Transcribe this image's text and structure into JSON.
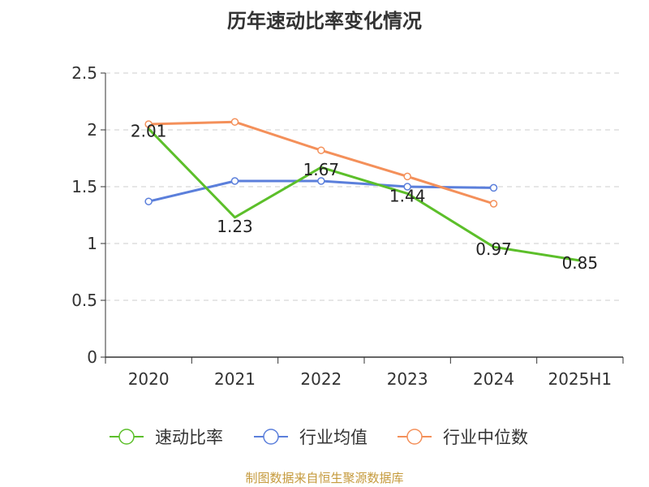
{
  "chart_data": {
    "type": "line",
    "title": "历年速动比率变化情况",
    "categories": [
      "2020",
      "2021",
      "2022",
      "2023",
      "2024",
      "2025H1"
    ],
    "ylim": [
      0,
      2.5
    ],
    "yticks": [
      "0",
      "0.5",
      "1",
      "1.5",
      "2",
      "2.5"
    ],
    "grid": true,
    "legend_position": "bottom",
    "series": [
      {
        "name": "速动比率",
        "color": "#5cbf2a",
        "values": [
          2.01,
          1.23,
          1.67,
          1.44,
          0.97,
          0.85
        ],
        "labels": [
          "2.01",
          "1.23",
          "1.67",
          "1.44",
          "0.97",
          "0.85"
        ]
      },
      {
        "name": "行业均值",
        "color": "#5b7fdb",
        "values": [
          1.37,
          1.55,
          1.55,
          1.5,
          1.49,
          null
        ]
      },
      {
        "name": "行业中位数",
        "color": "#f4905a",
        "values": [
          2.05,
          2.07,
          1.82,
          1.59,
          1.35,
          null
        ]
      }
    ]
  },
  "footer": {
    "source": "制图数据来自恒生聚源数据库"
  }
}
